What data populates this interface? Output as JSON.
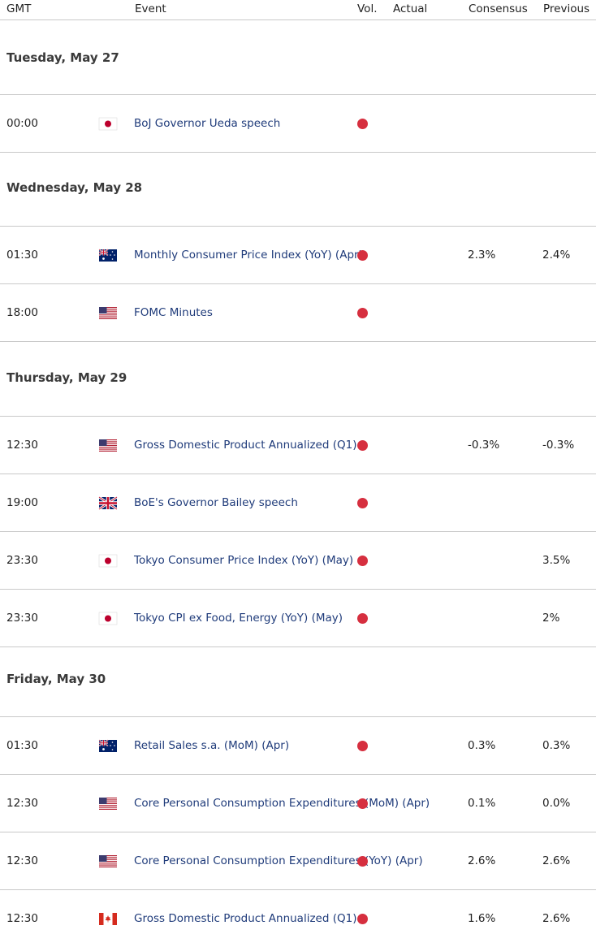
{
  "header": {
    "gmt": "GMT",
    "event": "Event",
    "vol": "Vol.",
    "actual": "Actual",
    "consensus": "Consensus",
    "previous": "Previous"
  },
  "colors": {
    "volatility_high": "#d62f3f",
    "event_link": "#1f3b7a"
  },
  "days": [
    {
      "label": "Tuesday, May 27"
    },
    {
      "label": "Wednesday, May 28"
    },
    {
      "label": "Thursday, May 29"
    },
    {
      "label": "Friday, May 30"
    }
  ],
  "events": [
    {
      "time": "00:00",
      "country": "jp-flag",
      "event": "BoJ Governor Ueda speech",
      "actual": "",
      "consensus": "",
      "previous": ""
    },
    {
      "time": "01:30",
      "country": "au-flag",
      "event": "Monthly Consumer Price Index (YoY) (Apr)",
      "actual": "",
      "consensus": "2.3%",
      "previous": "2.4%"
    },
    {
      "time": "18:00",
      "country": "us-flag",
      "event": "FOMC Minutes",
      "actual": "",
      "consensus": "",
      "previous": ""
    },
    {
      "time": "12:30",
      "country": "us-flag",
      "event": "Gross Domestic Product Annualized (Q1)",
      "actual": "",
      "consensus": "-0.3%",
      "previous": "-0.3%"
    },
    {
      "time": "19:00",
      "country": "gb-flag",
      "event": "BoE's Governor Bailey speech",
      "actual": "",
      "consensus": "",
      "previous": ""
    },
    {
      "time": "23:30",
      "country": "jp-flag",
      "event": "Tokyo Consumer Price Index (YoY) (May)",
      "actual": "",
      "consensus": "",
      "previous": "3.5%"
    },
    {
      "time": "23:30",
      "country": "jp-flag",
      "event": "Tokyo CPI ex Food, Energy (YoY) (May)",
      "actual": "",
      "consensus": "",
      "previous": "2%"
    },
    {
      "time": "01:30",
      "country": "au-flag",
      "event": "Retail Sales s.a. (MoM) (Apr)",
      "actual": "",
      "consensus": "0.3%",
      "previous": "0.3%"
    },
    {
      "time": "12:30",
      "country": "us-flag",
      "event": "Core Personal Consumption Expenditures (MoM) (Apr)",
      "actual": "",
      "consensus": "0.1%",
      "previous": "0.0%"
    },
    {
      "time": "12:30",
      "country": "us-flag",
      "event": "Core Personal Consumption Expenditures (YoY) (Apr)",
      "actual": "",
      "consensus": "2.6%",
      "previous": "2.6%"
    },
    {
      "time": "12:30",
      "country": "ca-flag",
      "event": "Gross Domestic Product Annualized (Q1)",
      "actual": "",
      "consensus": "1.6%",
      "previous": "2.6%"
    }
  ]
}
